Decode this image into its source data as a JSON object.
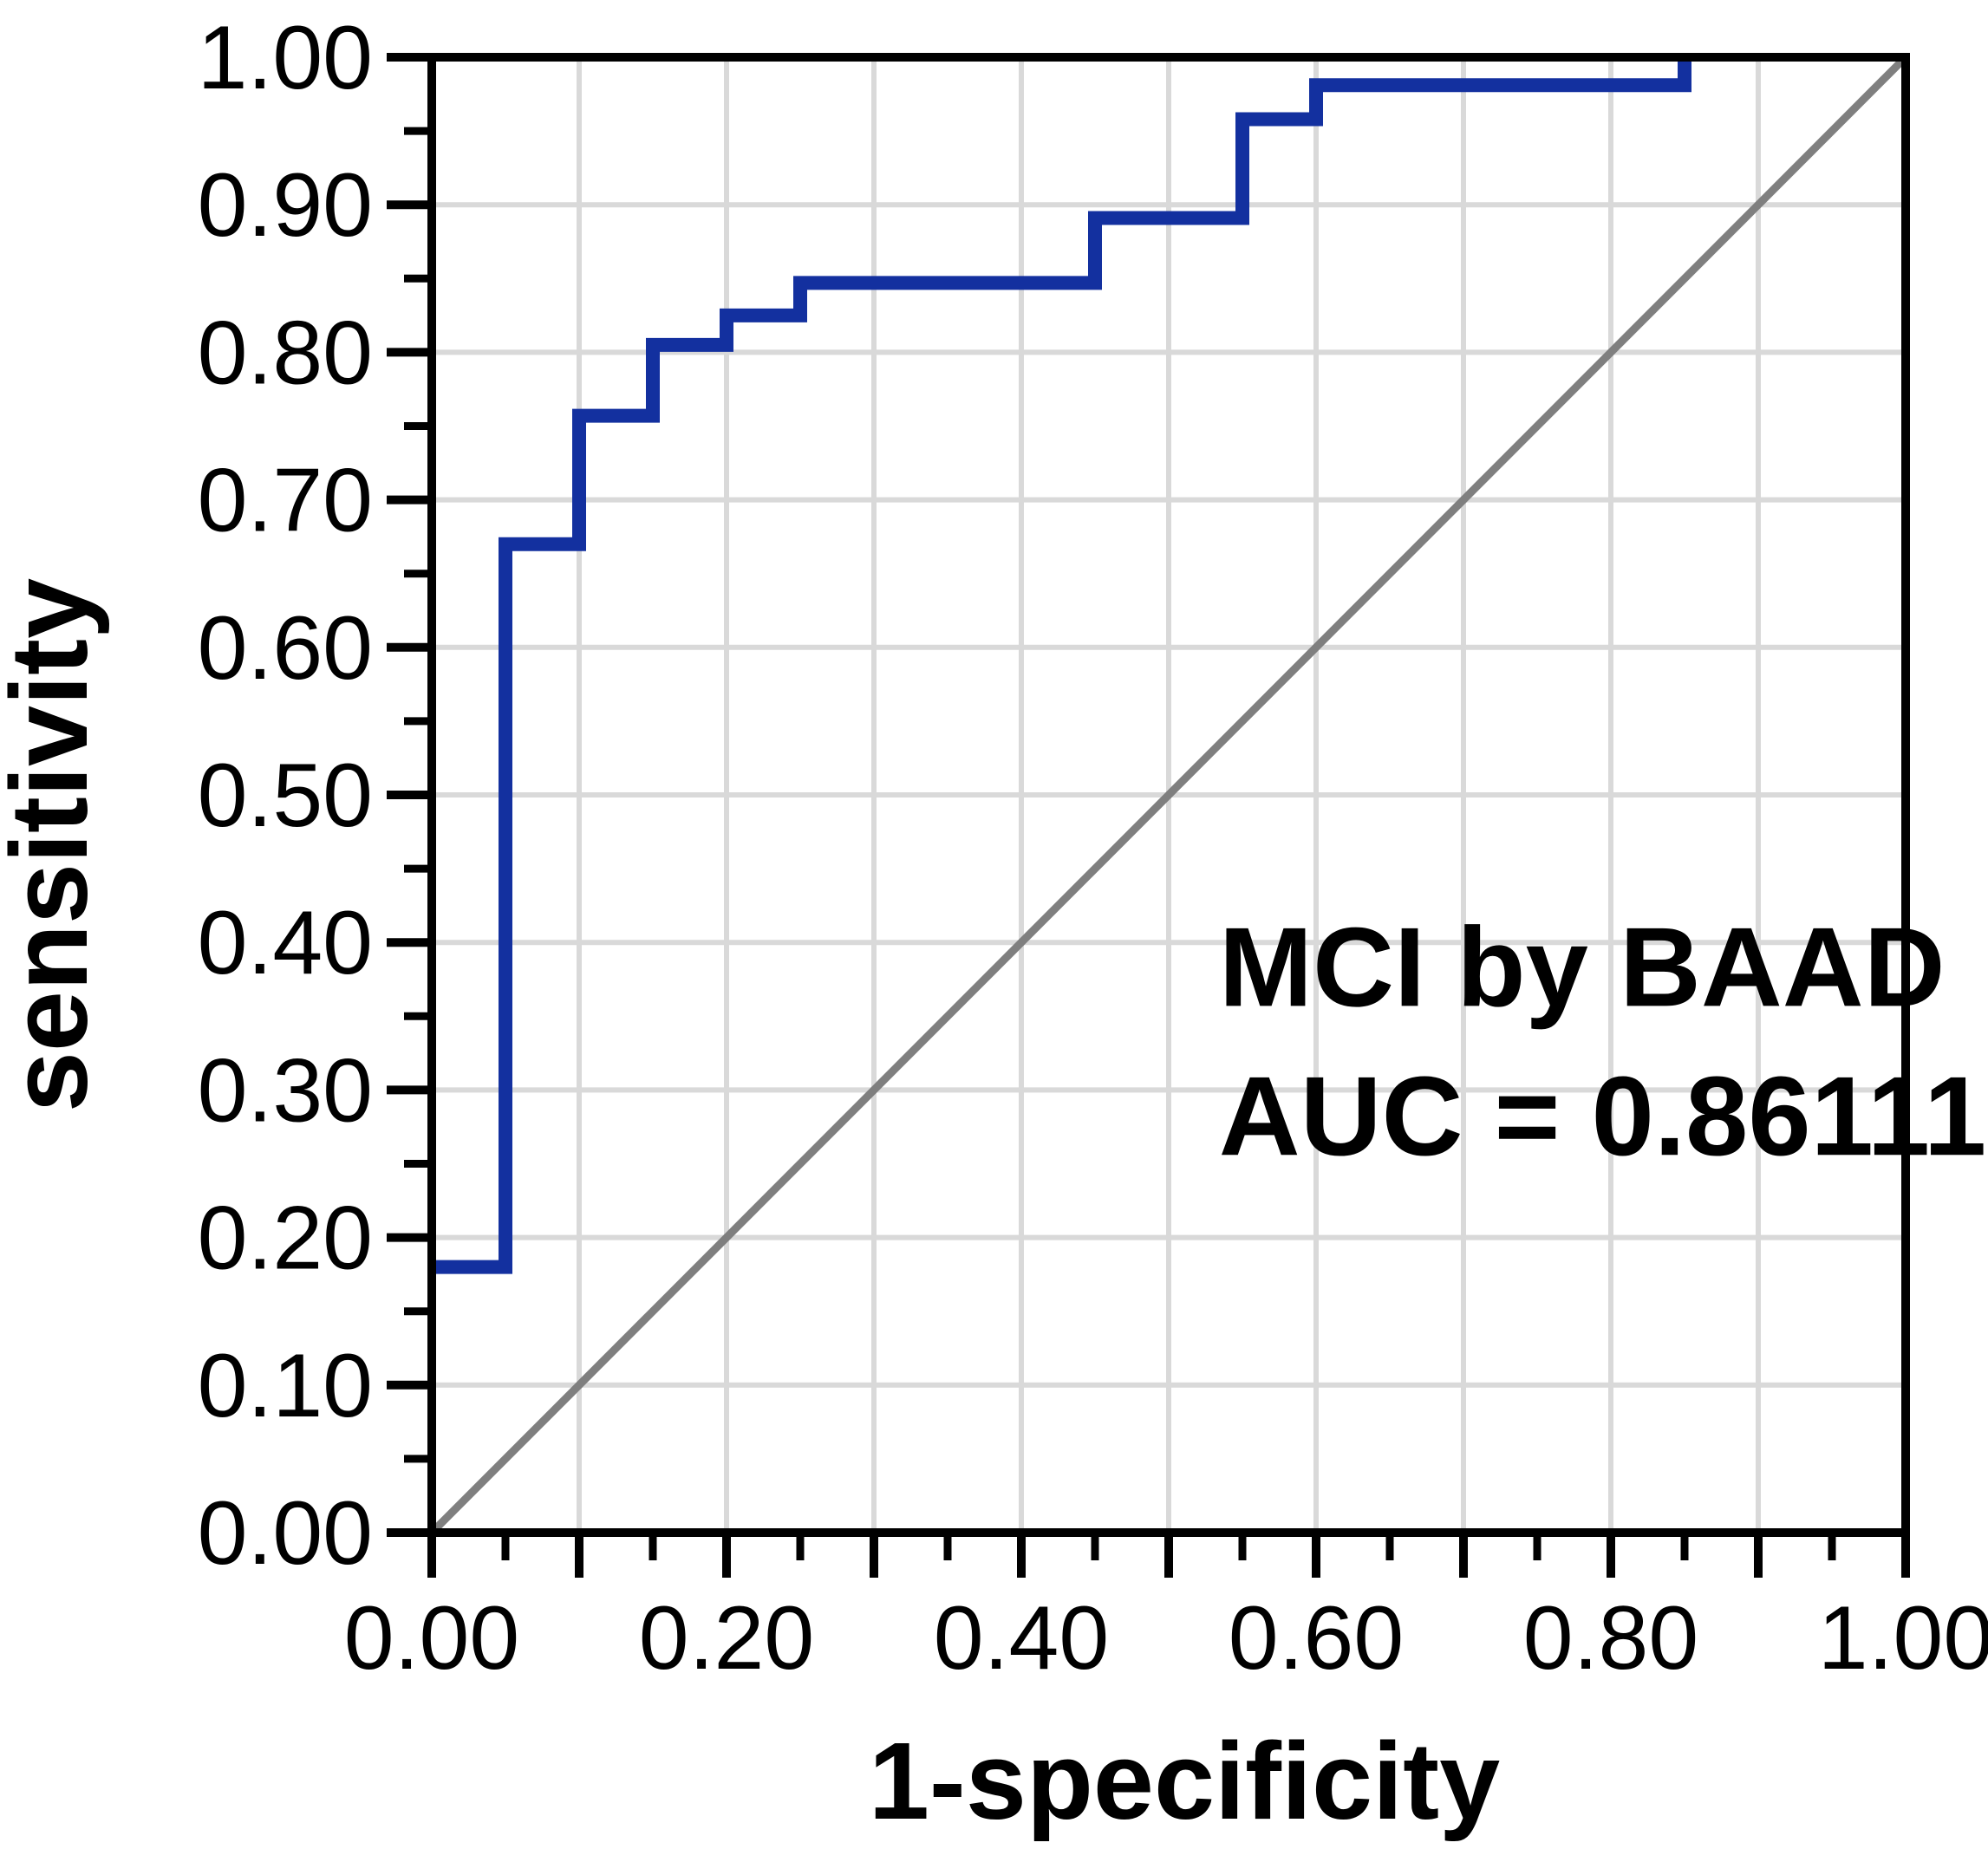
{
  "figure": {
    "background_color": "#ffffff",
    "axis_color": "#000000",
    "grid_color": "#d9d9d9"
  },
  "chart_data": {
    "type": "line",
    "subtype": "roc-step-curve",
    "title": "",
    "xlabel": "1-specificity",
    "ylabel": "sensitivity",
    "xlim": [
      0,
      1
    ],
    "ylim": [
      0,
      1
    ],
    "grid": true,
    "grid_interval": 0.1,
    "major_tick_interval": 0.1,
    "minor_tick_interval": 0.05,
    "legend_position": "none",
    "x_tick_labels": [
      "0.00",
      "0.20",
      "0.40",
      "0.60",
      "0.80",
      "1.00"
    ],
    "y_tick_labels": [
      "0.00",
      "0.10",
      "0.20",
      "0.30",
      "0.40",
      "0.50",
      "0.60",
      "0.70",
      "0.80",
      "0.90",
      "1.00"
    ],
    "series": [
      {
        "name": "chance reference diagonal",
        "color": "#7f7f7f",
        "stroke_width": 9,
        "points": [
          [
            0,
            0
          ],
          [
            1,
            1
          ]
        ]
      },
      {
        "name": "ROC curve MCI by BAAD",
        "color": "#13309f",
        "stroke_width": 16,
        "points": [
          [
            0.0,
            0.18
          ],
          [
            0.05,
            0.18
          ],
          [
            0.05,
            0.67
          ],
          [
            0.1,
            0.67
          ],
          [
            0.1,
            0.757
          ],
          [
            0.15,
            0.757
          ],
          [
            0.15,
            0.805
          ],
          [
            0.2,
            0.805
          ],
          [
            0.2,
            0.825
          ],
          [
            0.25,
            0.825
          ],
          [
            0.25,
            0.847
          ],
          [
            0.45,
            0.847
          ],
          [
            0.45,
            0.891
          ],
          [
            0.55,
            0.891
          ],
          [
            0.55,
            0.958
          ],
          [
            0.6,
            0.958
          ],
          [
            0.6,
            0.981
          ],
          [
            0.85,
            0.981
          ],
          [
            0.85,
            1.0
          ]
        ]
      }
    ],
    "annotations": [
      {
        "text": "MCI by BAAD",
        "x": 0.534,
        "y": 0.357
      },
      {
        "text": "AUC = 0.86111",
        "x": 0.534,
        "y": 0.256
      }
    ],
    "auc_value": "0.86111"
  }
}
